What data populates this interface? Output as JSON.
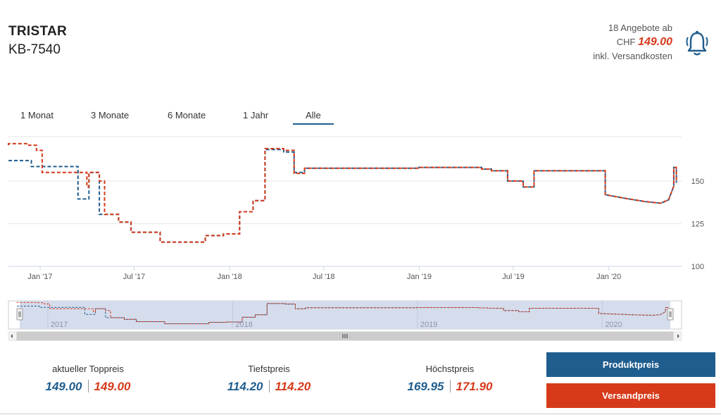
{
  "header": {
    "brand": "TRISTAR",
    "model": "KB-7540",
    "offers_text": "18 Angebote ab",
    "currency": "CHF",
    "price": "149.00",
    "shipping_note": "inkl. Versandkosten"
  },
  "icons": {
    "alert": "bell-icon"
  },
  "range_buttons": [
    "1 Monat",
    "3 Monate",
    "6 Monate",
    "1 Jahr",
    "Alle"
  ],
  "range_selected": "Alle",
  "navigator": {
    "year_labels": [
      "2017",
      "2018",
      "2019",
      "2020"
    ]
  },
  "stats": [
    {
      "title": "aktueller Toppreis",
      "blue": "149.00",
      "orange": "149.00"
    },
    {
      "title": "Tiefstpreis",
      "blue": "114.20",
      "orange": "114.20"
    },
    {
      "title": "Höchstpreis",
      "blue": "169.95",
      "orange": "171.90"
    }
  ],
  "legend": {
    "product_label": "Produktpreis",
    "shipping_label": "Versandpreis"
  },
  "colors": {
    "product": "#1f5d8e",
    "shipping": "#d63a1a",
    "accent": "#1f5d8e"
  },
  "chart_data": {
    "type": "line",
    "x_tick_labels": [
      "Jan '17",
      "Jul '17",
      "Jan '18",
      "Jul '18",
      "Jan '19",
      "Jul '19",
      "Jan '20"
    ],
    "y_tick_labels": [
      "100",
      "125",
      "150"
    ],
    "ylim": [
      100,
      176
    ],
    "xlim": [
      "2016-11-01",
      "2020-05-20"
    ],
    "grid": true,
    "series": [
      {
        "name": "Produktpreis",
        "color": "#1f5d8e",
        "points": [
          [
            "2016-11-01",
            162
          ],
          [
            "2016-12-15",
            162
          ],
          [
            "2016-12-15",
            158.5
          ],
          [
            "2017-03-15",
            158.5
          ],
          [
            "2017-03-15",
            153.5
          ],
          [
            "2017-03-15",
            139.5
          ],
          [
            "2017-04-05",
            139.5
          ],
          [
            "2017-04-05",
            155
          ],
          [
            "2017-04-25",
            155
          ],
          [
            "2017-04-25",
            130.5
          ],
          [
            "2017-06-01",
            130.5
          ],
          [
            "2017-06-01",
            126
          ],
          [
            "2017-06-25",
            126
          ],
          [
            "2017-06-25",
            120
          ],
          [
            "2017-08-20",
            120
          ],
          [
            "2017-08-20",
            114.2
          ],
          [
            "2017-11-15",
            114.2
          ],
          [
            "2017-11-15",
            118
          ],
          [
            "2017-12-20",
            118
          ],
          [
            "2017-12-20",
            119
          ],
          [
            "2018-01-20",
            119
          ],
          [
            "2018-01-20",
            132
          ],
          [
            "2018-02-15",
            132
          ],
          [
            "2018-02-15",
            138.5
          ],
          [
            "2018-03-10",
            138.5
          ],
          [
            "2018-03-10",
            168.5
          ],
          [
            "2018-04-15",
            168.5
          ],
          [
            "2018-04-15",
            167
          ],
          [
            "2018-05-05",
            167
          ],
          [
            "2018-05-05",
            155
          ],
          [
            "2018-05-25",
            155
          ],
          [
            "2018-05-25",
            157.5
          ],
          [
            "2018-12-31",
            157.5
          ],
          [
            "2018-12-31",
            158
          ],
          [
            "2019-05-01",
            158
          ],
          [
            "2019-05-01",
            157
          ],
          [
            "2019-05-20",
            157
          ],
          [
            "2019-05-20",
            156
          ],
          [
            "2019-06-20",
            156
          ],
          [
            "2019-06-20",
            150
          ],
          [
            "2019-07-20",
            150
          ],
          [
            "2019-07-20",
            146.5
          ],
          [
            "2019-08-10",
            146.5
          ],
          [
            "2019-08-10",
            156
          ],
          [
            "2019-12-25",
            156
          ],
          [
            "2019-12-25",
            142
          ],
          [
            "2020-01-30",
            140
          ],
          [
            "2020-03-10",
            138
          ],
          [
            "2020-04-10",
            137
          ],
          [
            "2020-04-25",
            139
          ],
          [
            "2020-05-05",
            147
          ],
          [
            "2020-05-05",
            158
          ],
          [
            "2020-05-10",
            158
          ],
          [
            "2020-05-10",
            149
          ]
        ]
      },
      {
        "name": "Versandpreis",
        "color": "#d63a1a",
        "points": [
          [
            "2016-11-01",
            171
          ],
          [
            "2016-11-01",
            171.9
          ],
          [
            "2016-12-10",
            171.9
          ],
          [
            "2016-12-10",
            171
          ],
          [
            "2016-12-25",
            171
          ],
          [
            "2016-12-25",
            168
          ],
          [
            "2017-01-05",
            168
          ],
          [
            "2017-01-05",
            155
          ],
          [
            "2017-04-01",
            155
          ],
          [
            "2017-04-01",
            146.5
          ],
          [
            "2017-04-05",
            146.5
          ],
          [
            "2017-04-05",
            155
          ],
          [
            "2017-04-25",
            155
          ],
          [
            "2017-04-25",
            150
          ],
          [
            "2017-05-05",
            150
          ],
          [
            "2017-05-05",
            130.5
          ],
          [
            "2017-06-01",
            130.5
          ],
          [
            "2017-06-01",
            126
          ],
          [
            "2017-06-25",
            126
          ],
          [
            "2017-06-25",
            120
          ],
          [
            "2017-08-20",
            120
          ],
          [
            "2017-08-20",
            114.2
          ],
          [
            "2017-11-15",
            114.2
          ],
          [
            "2017-11-15",
            118
          ],
          [
            "2017-12-20",
            118
          ],
          [
            "2017-12-20",
            119
          ],
          [
            "2018-01-20",
            119
          ],
          [
            "2018-01-20",
            132
          ],
          [
            "2018-02-15",
            132
          ],
          [
            "2018-02-15",
            138.5
          ],
          [
            "2018-03-10",
            138.5
          ],
          [
            "2018-03-10",
            169
          ],
          [
            "2018-04-15",
            169
          ],
          [
            "2018-04-15",
            168
          ],
          [
            "2018-05-05",
            168
          ],
          [
            "2018-05-05",
            154.5
          ],
          [
            "2018-05-25",
            154.5
          ],
          [
            "2018-05-25",
            157.5
          ],
          [
            "2018-12-31",
            157.5
          ],
          [
            "2018-12-31",
            158
          ],
          [
            "2019-05-01",
            158
          ],
          [
            "2019-05-01",
            157
          ],
          [
            "2019-05-20",
            157
          ],
          [
            "2019-05-20",
            156
          ],
          [
            "2019-06-20",
            156
          ],
          [
            "2019-06-20",
            150
          ],
          [
            "2019-07-20",
            150
          ],
          [
            "2019-07-20",
            146.5
          ],
          [
            "2019-08-10",
            146.5
          ],
          [
            "2019-08-10",
            156
          ],
          [
            "2019-12-25",
            156
          ],
          [
            "2019-12-25",
            142
          ],
          [
            "2020-01-30",
            140
          ],
          [
            "2020-03-10",
            138
          ],
          [
            "2020-04-10",
            137
          ],
          [
            "2020-04-25",
            139
          ],
          [
            "2020-05-05",
            147
          ],
          [
            "2020-05-05",
            158
          ],
          [
            "2020-05-10",
            158
          ],
          [
            "2020-05-10",
            149
          ]
        ]
      }
    ]
  }
}
